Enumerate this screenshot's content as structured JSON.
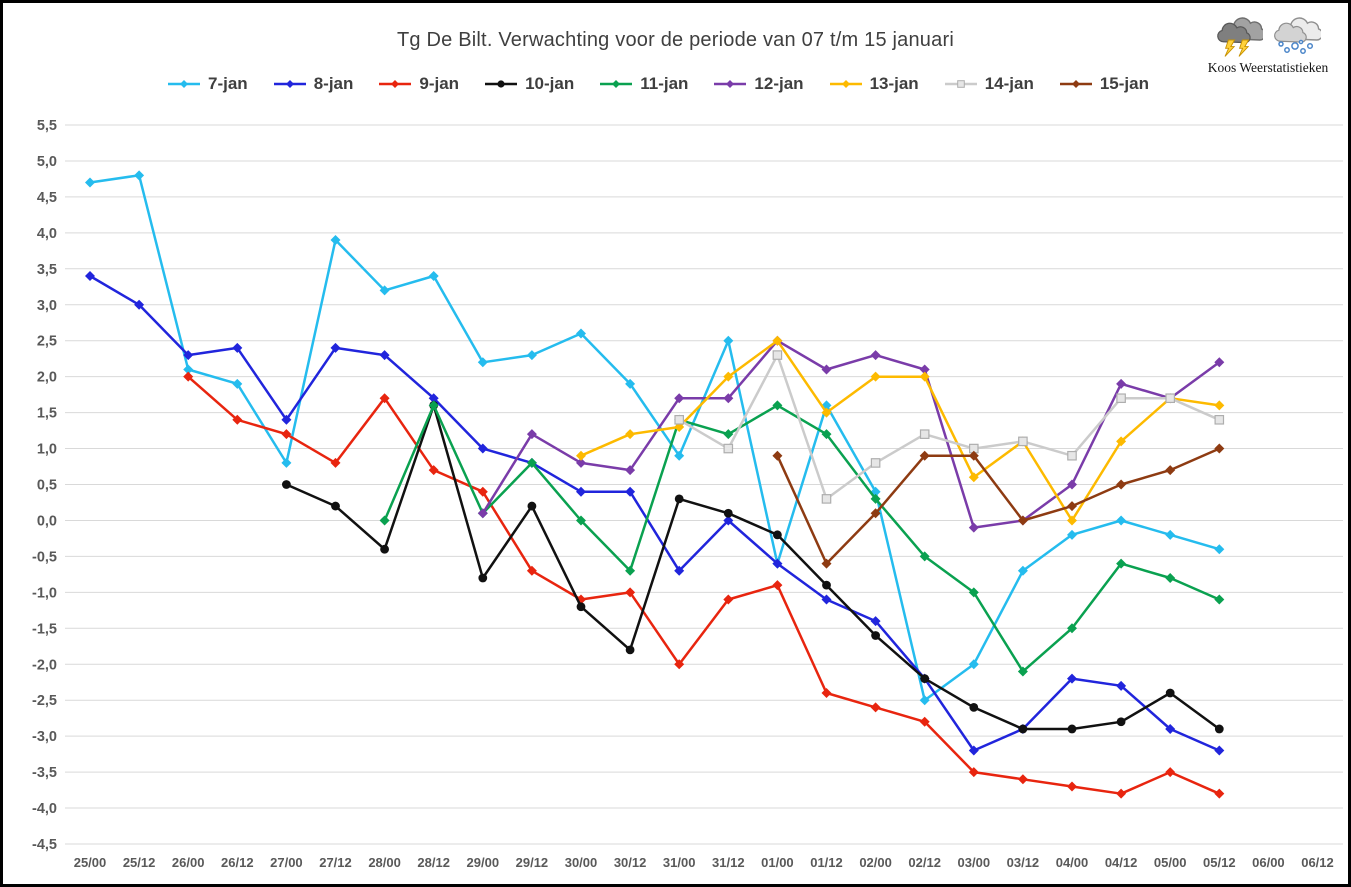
{
  "logo": {
    "caption": "Koos Weerstatistieken",
    "icons": [
      "storm-cloud-icon",
      "snow-cloud-icon"
    ]
  },
  "colors": {
    "background": "#FFFFFF",
    "border": "#000000",
    "grid": "#D9D9D9",
    "axis_text": "#595959",
    "title_text": "#3F3F3F",
    "legend_text": "#3F3F3F"
  },
  "chart_data": {
    "type": "line",
    "title": "Tg De Bilt. Verwachting voor de periode van 07 t/m 15 januari",
    "xlabel": "",
    "ylabel": "",
    "ylim": [
      -4.5,
      5.5
    ],
    "ytick_step": 0.5,
    "grid": "horizontal",
    "legend_position": "top",
    "decimal_separator": ",",
    "yticks": [
      "5,5",
      "5,0",
      "4,5",
      "4,0",
      "3,5",
      "3,0",
      "2,5",
      "2,0",
      "1,5",
      "1,0",
      "0,5",
      "0,0",
      "-0,5",
      "-1,0",
      "-1,5",
      "-2,0",
      "-2,5",
      "-3,0",
      "-3,5",
      "-4,0",
      "-4,5"
    ],
    "categories": [
      "25/00",
      "25/12",
      "26/00",
      "26/12",
      "27/00",
      "27/12",
      "28/00",
      "28/12",
      "29/00",
      "29/12",
      "30/00",
      "30/12",
      "31/00",
      "31/12",
      "01/00",
      "01/12",
      "02/00",
      "02/12",
      "03/00",
      "03/12",
      "04/00",
      "04/12",
      "05/00",
      "05/12",
      "06/00",
      "06/12"
    ],
    "series": [
      {
        "name": "7-jan",
        "color": "#25BCEE",
        "marker": "diamond",
        "start": 0,
        "values": [
          4.7,
          4.8,
          2.1,
          1.9,
          0.8,
          3.9,
          3.2,
          3.4,
          2.2,
          2.3,
          2.6,
          1.9,
          0.9,
          2.5,
          -0.6,
          1.6,
          0.4,
          -2.5,
          -2.0,
          -0.7,
          -0.2,
          0.0,
          -0.2,
          -0.4
        ]
      },
      {
        "name": "8-jan",
        "color": "#2125DC",
        "marker": "diamond",
        "start": 0,
        "values": [
          3.4,
          3.0,
          2.3,
          2.4,
          1.4,
          2.4,
          2.3,
          1.7,
          1.0,
          0.8,
          0.4,
          0.4,
          -0.7,
          0.0,
          -0.6,
          -1.1,
          -1.4,
          -2.2,
          -3.2,
          -2.9,
          -2.2,
          -2.3,
          -2.9,
          -3.2
        ]
      },
      {
        "name": "9-jan",
        "color": "#E8250F",
        "marker": "diamond",
        "start": 2,
        "values": [
          2.0,
          1.4,
          1.2,
          0.8,
          1.7,
          0.7,
          0.4,
          -0.7,
          -1.1,
          -1.0,
          -2.0,
          -1.1,
          -0.9,
          -2.4,
          -2.6,
          -2.8,
          -3.5,
          -3.6,
          -3.7,
          -3.8,
          -3.5,
          -3.8
        ]
      },
      {
        "name": "10-jan",
        "color": "#111111",
        "marker": "circle",
        "start": 4,
        "values": [
          0.5,
          0.2,
          -0.4,
          1.6,
          -0.8,
          0.2,
          -1.2,
          -1.8,
          0.3,
          0.1,
          -0.2,
          -0.9,
          -1.6,
          -2.2,
          -2.6,
          -2.9,
          -2.9,
          -2.8,
          -2.4,
          -2.9
        ]
      },
      {
        "name": "11-jan",
        "color": "#0AA150",
        "marker": "diamond",
        "start": 6,
        "values": [
          0.0,
          1.6,
          0.1,
          0.8,
          0.0,
          -0.7,
          1.4,
          1.2,
          1.6,
          1.2,
          0.3,
          -0.5,
          -1.0,
          -2.1,
          -1.5,
          -0.6,
          -0.8,
          -1.1
        ]
      },
      {
        "name": "12-jan",
        "color": "#7A3CA9",
        "marker": "diamond",
        "start": 8,
        "values": [
          0.1,
          1.2,
          0.8,
          0.7,
          1.7,
          1.7,
          2.5,
          2.1,
          2.3,
          2.1,
          -0.1,
          0.0,
          0.5,
          1.9,
          1.7,
          2.2
        ]
      },
      {
        "name": "13-jan",
        "color": "#FDBA00",
        "marker": "diamond",
        "start": 10,
        "values": [
          0.9,
          1.2,
          1.3,
          2.0,
          2.5,
          1.5,
          2.0,
          2.0,
          0.6,
          1.1,
          0.0,
          1.1,
          1.7,
          1.6
        ]
      },
      {
        "name": "14-jan",
        "color": "#CBCBCB",
        "marker": "square",
        "start": 12,
        "values": [
          1.4,
          1.0,
          2.3,
          0.3,
          0.8,
          1.2,
          1.0,
          1.1,
          0.9,
          1.7,
          1.7,
          1.4
        ]
      },
      {
        "name": "15-jan",
        "color": "#8E3B12",
        "marker": "diamond",
        "start": 14,
        "values": [
          0.9,
          -0.6,
          0.1,
          0.9,
          0.9,
          0.0,
          0.2,
          0.5,
          0.7,
          1.0
        ]
      }
    ]
  }
}
